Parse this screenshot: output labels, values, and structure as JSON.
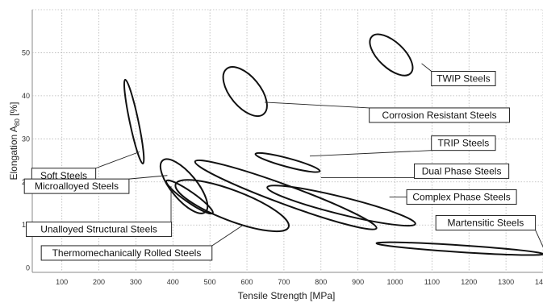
{
  "chart_data": {
    "type": "scatter",
    "title": "",
    "xlabel": "Tensile Strength [MPa]",
    "ylabel": {
      "pre": "Elongation  A",
      "sub": "80",
      "post": " [%]"
    },
    "xlim": [
      20,
      1400
    ],
    "ylim": [
      -1,
      60
    ],
    "grid": true,
    "x_ticks": [
      100,
      200,
      300,
      400,
      500,
      600,
      700,
      800,
      900,
      1000,
      1100,
      1200,
      1300,
      1400
    ],
    "y_ticks": [
      0,
      10,
      20,
      30,
      40,
      50
    ],
    "regions": [
      {
        "name": "TWIP Steels",
        "center": [
          990,
          49.5
        ],
        "end1": [
          955,
          54.5
        ],
        "end2": [
          1060,
          46
        ],
        "semi_minor": 3.0
      },
      {
        "name": "Corrosion Resistant Steels",
        "center": [
          595,
          41
        ],
        "end1": [
          545,
          46.5
        ],
        "end2": [
          645,
          36
        ],
        "semi_minor": 3.5
      },
      {
        "name": "TRIP Steels",
        "center": [
          710,
          24.5
        ],
        "end1": [
          622,
          26.5
        ],
        "end2": [
          796,
          22.5
        ],
        "semi_minor": 1.0
      },
      {
        "name": "Dual Phase Steels",
        "center": [
          705,
          17
        ],
        "end1": [
          520,
          25
        ],
        "end2": [
          1010,
          9.5
        ],
        "semi_minor": 2.2
      },
      {
        "name": "Complex Phase Steels",
        "center": [
          855,
          14.5
        ],
        "end1": [
          610,
          18.5
        ],
        "end2": [
          1010,
          10
        ],
        "semi_minor": 2.0
      },
      {
        "name": "Martensitic Steels",
        "center": [
          1175,
          4.5
        ],
        "end1": [
          950,
          5.5
        ],
        "end2": [
          1400,
          3.0
        ],
        "semi_minor": 0.8
      },
      {
        "name": "Soft Steels",
        "center": [
          295,
          34
        ],
        "end1": [
          270,
          44
        ],
        "end2": [
          318,
          24.5
        ],
        "semi_minor": 1.0
      },
      {
        "name": "Microalloyed Steels",
        "center": [
          430,
          19
        ],
        "end1": [
          365,
          25
        ],
        "end2": [
          480,
          13
        ],
        "semi_minor": 3.0
      },
      {
        "name": "Unalloyed Structural Steels",
        "center": [
          445,
          16.5
        ],
        "end1": [
          375,
          20.5
        ],
        "end2": [
          500,
          13
        ],
        "semi_minor": 1.2
      },
      {
        "name": "Thermomechanically Rolled Steels",
        "center": [
          560,
          14.5
        ],
        "end1": [
          410,
          19.5
        ],
        "end2": [
          715,
          9.5
        ],
        "semi_minor": 3.5
      }
    ],
    "callouts": [
      {
        "label": "TWIP Steels",
        "label_at": [
          1185,
          44
        ],
        "point": [
          1072,
          47.5
        ]
      },
      {
        "label": "Corrosion Resistant Steels",
        "label_at": [
          1120,
          35.5
        ],
        "point": [
          648,
          38.5
        ]
      },
      {
        "label": "TRIP Steels",
        "label_at": [
          1185,
          29
        ],
        "point": [
          770,
          26
        ]
      },
      {
        "label": "Dual Phase Steels",
        "label_at": [
          1180,
          22.5
        ],
        "point": [
          800,
          21
        ]
      },
      {
        "label": "Complex Phase Steels",
        "label_at": [
          1180,
          16.5
        ],
        "point": [
          985,
          16.5
        ]
      },
      {
        "label": "Martensitic Steels",
        "label_at": [
          1245,
          10.5
        ],
        "point": [
          1405,
          4
        ]
      },
      {
        "label": "Soft Steels",
        "label_at": [
          105,
          21.5
        ],
        "point": [
          310,
          27
        ]
      },
      {
        "label": "Microalloyed Steels",
        "label_at": [
          140,
          19
        ],
        "point": [
          385,
          21.5
        ]
      },
      {
        "label": "Unalloyed Structural Steels",
        "label_at": [
          200,
          9
        ],
        "point": [
          395,
          19
        ]
      },
      {
        "label": "Thermomechanically Rolled Steels",
        "label_at": [
          275,
          3.5
        ],
        "point": [
          590,
          10
        ]
      }
    ]
  }
}
